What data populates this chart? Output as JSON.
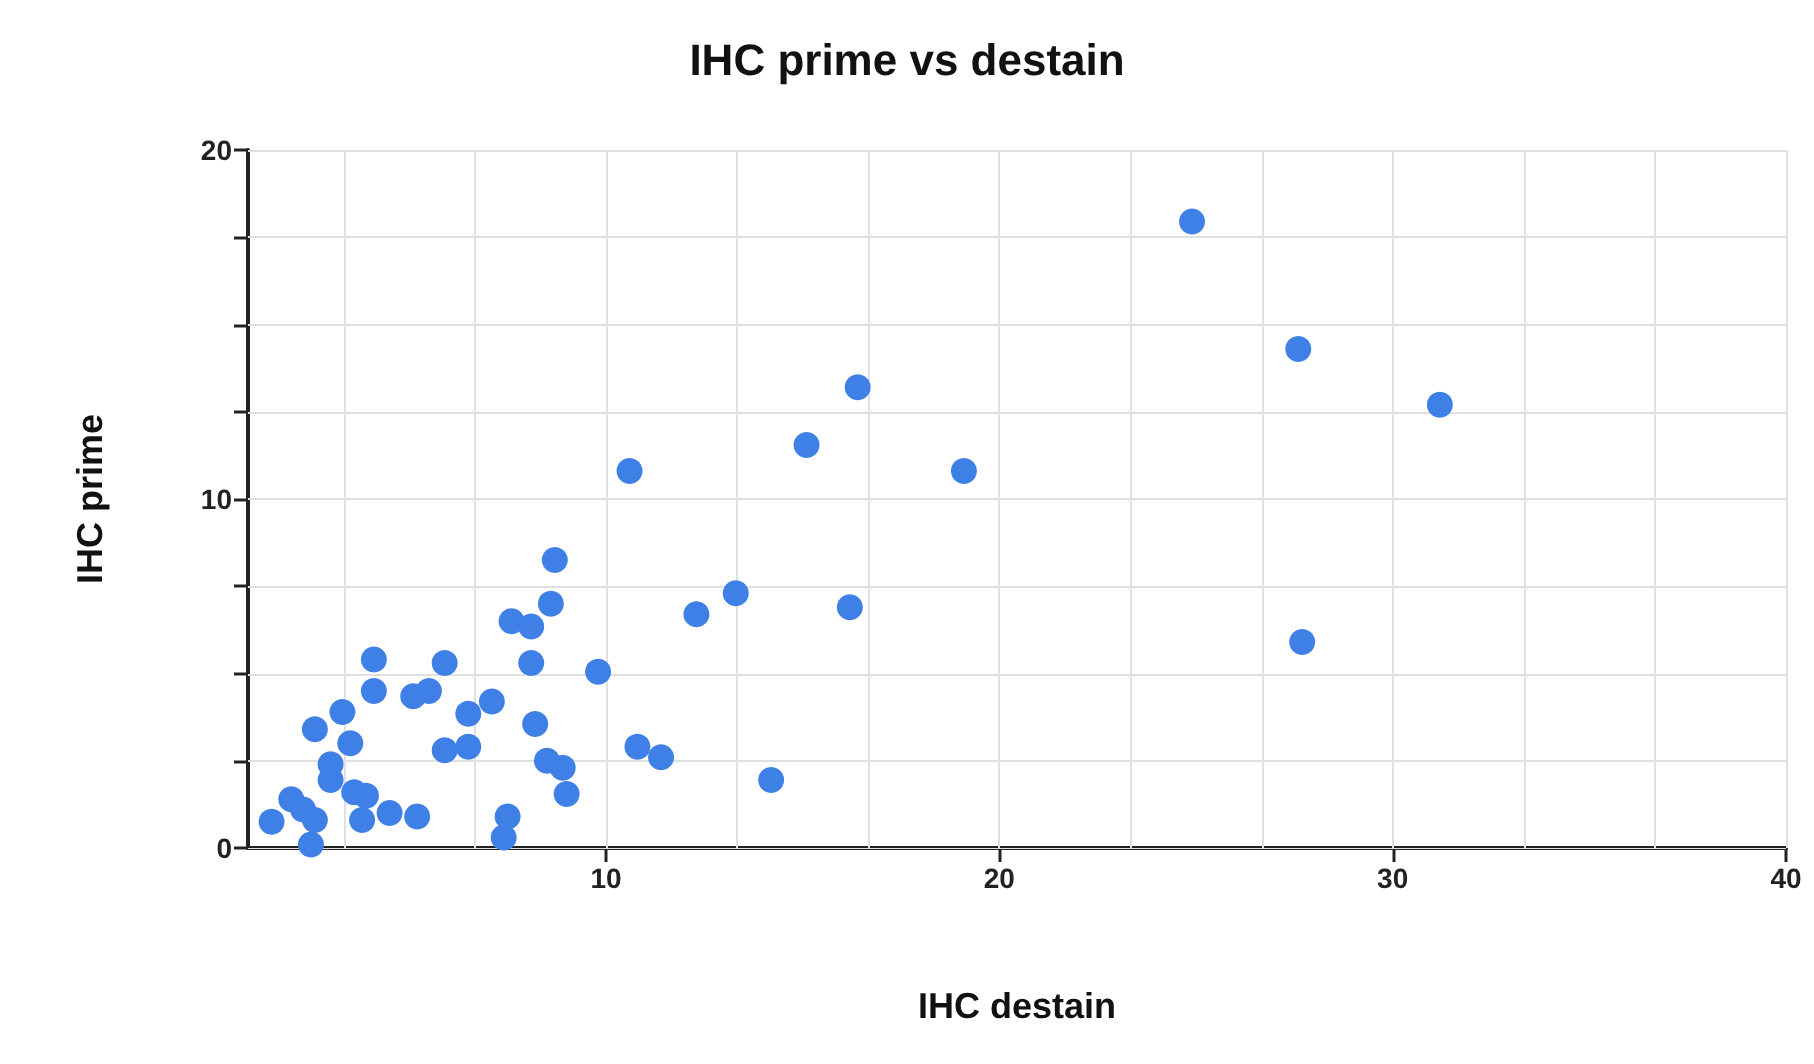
{
  "chart_data": {
    "type": "scatter",
    "title": "IHC prime vs destain",
    "xlabel": "IHC destain",
    "ylabel": "IHC prime",
    "marker": "circle",
    "grid": true,
    "xlim": [
      0.9,
      40
    ],
    "ylim": [
      0,
      20
    ],
    "xticks": [
      {
        "value": 3.333,
        "label": null
      },
      {
        "value": 6.667,
        "label": null
      },
      10,
      {
        "value": 13.333,
        "label": null
      },
      {
        "value": 16.667,
        "label": null
      },
      20,
      {
        "value": 23.333,
        "label": null
      },
      {
        "value": 26.667,
        "label": null
      },
      30,
      {
        "value": 33.333,
        "label": null
      },
      {
        "value": 36.667,
        "label": null
      },
      40
    ],
    "yticks": [
      0,
      {
        "value": 2.5,
        "label": null
      },
      {
        "value": 5,
        "label": null
      },
      {
        "value": 7.5,
        "label": null
      },
      10,
      {
        "value": 12.5,
        "label": null
      },
      {
        "value": 15,
        "label": null
      },
      {
        "value": 17.5,
        "label": null
      },
      20
    ],
    "series": [
      {
        "color": "#3f80e6",
        "x": [
          1.5,
          2.0,
          2.3,
          2.6,
          2.5,
          2.6,
          3.0,
          3.0,
          3.3,
          3.5,
          3.6,
          3.8,
          4.1,
          4.1,
          3.9,
          4.5,
          4.9,
          5.1,
          5.2,
          5.5,
          5.9,
          5.9,
          6.5,
          6.5,
          7.1,
          7.5,
          7.4,
          7.6,
          8.1,
          8.1,
          8.2,
          8.5,
          8.6,
          8.7,
          8.9,
          9.0,
          9.8,
          10.6,
          10.8,
          11.4,
          12.3,
          13.3,
          14.2,
          15.1,
          16.2,
          16.4,
          19.1,
          24.9,
          27.6,
          27.7,
          31.2
        ],
        "values": [
          0.75,
          1.4,
          1.1,
          0.8,
          0.1,
          3.4,
          2.4,
          1.95,
          3.9,
          3.0,
          1.6,
          0.8,
          5.4,
          4.5,
          1.5,
          1.0,
          null,
          4.35,
          0.9,
          4.5,
          5.3,
          2.8,
          2.9,
          3.85,
          4.2,
          0.9,
          0.3,
          6.5,
          6.35,
          5.3,
          3.55,
          2.5,
          7.0,
          8.25,
          2.3,
          1.55,
          5.05,
          10.8,
          2.9,
          2.6,
          6.7,
          7.3,
          1.95,
          11.55,
          6.9,
          13.2,
          10.8,
          17.95,
          14.3,
          5.9,
          12.7
        ]
      }
    ]
  }
}
